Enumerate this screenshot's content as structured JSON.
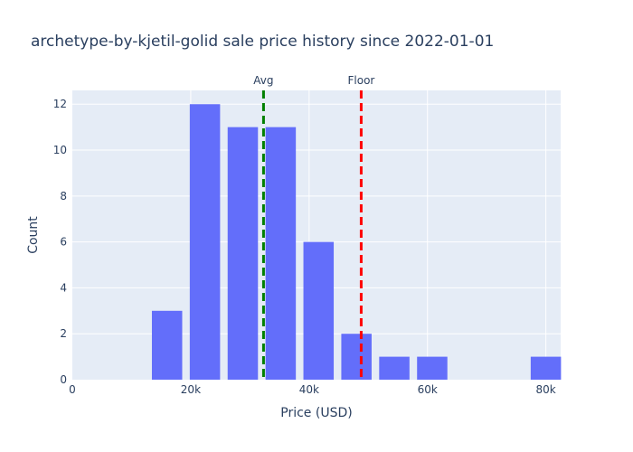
{
  "chart_data": {
    "type": "bar",
    "title": "archetype-by-kjetil-golid sale price history since 2022-01-01",
    "xlabel": "Price (USD)",
    "ylabel": "Count",
    "xlim": [
      0,
      82500
    ],
    "ylim": [
      0,
      12.6
    ],
    "x_ticks": [
      0,
      20000,
      40000,
      60000,
      80000
    ],
    "x_tick_labels": [
      "0",
      "20k",
      "40k",
      "60k",
      "80k"
    ],
    "y_ticks": [
      0,
      2,
      4,
      6,
      8,
      10,
      12
    ],
    "y_tick_labels": [
      "0",
      "2",
      "4",
      "6",
      "8",
      "10",
      "12"
    ],
    "bin_width": 6400,
    "bars": [
      {
        "x": 16000,
        "count": 3
      },
      {
        "x": 22400,
        "count": 12
      },
      {
        "x": 28800,
        "count": 11
      },
      {
        "x": 35200,
        "count": 11
      },
      {
        "x": 41600,
        "count": 6
      },
      {
        "x": 48000,
        "count": 2
      },
      {
        "x": 54400,
        "count": 1
      },
      {
        "x": 60800,
        "count": 1
      },
      {
        "x": 80000,
        "count": 1
      }
    ],
    "reference_lines": [
      {
        "label": "Avg",
        "x": 32300,
        "color": "#008000",
        "dash": "dashed"
      },
      {
        "label": "Floor",
        "x": 48800,
        "color": "#ff0000",
        "dash": "dashed"
      }
    ],
    "bar_color": "#636efa",
    "plot_bg": "#e5ecf6",
    "grid": true
  }
}
